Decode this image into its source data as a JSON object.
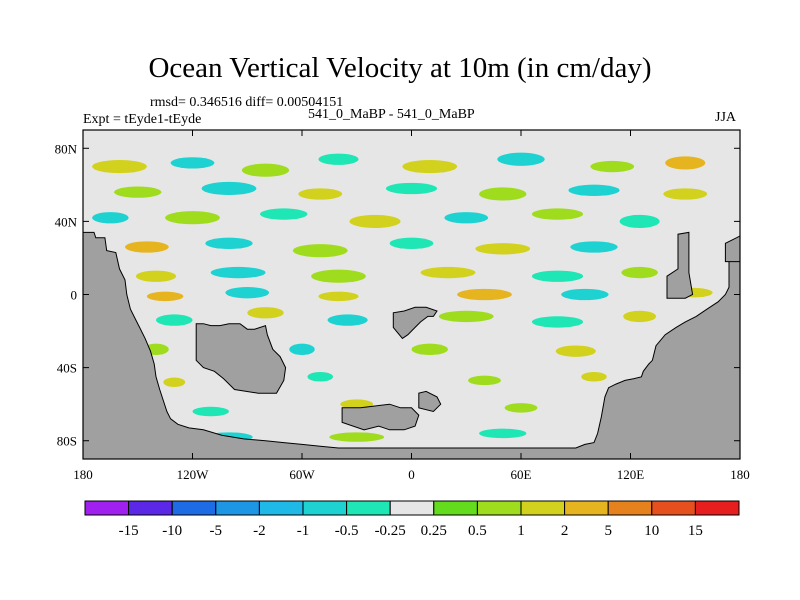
{
  "chart_data": {
    "type": "heatmap",
    "title": "Ocean Vertical Velocity at 10m (in cm/day)",
    "stats": "rmsd= 0.346516 diff= 0.00504151",
    "experiment": "Expt = tEyde1-tEyde",
    "comparison": "541_0_MaBP - 541_0_MaBP",
    "season": "JJA",
    "x_range": [
      -180,
      180
    ],
    "y_range": [
      -90,
      90
    ],
    "x_ticks": [
      {
        "value": -180,
        "label": "180"
      },
      {
        "value": -120,
        "label": "120W"
      },
      {
        "value": -60,
        "label": "60W"
      },
      {
        "value": 0,
        "label": "0"
      },
      {
        "value": 60,
        "label": "60E"
      },
      {
        "value": 120,
        "label": "120E"
      },
      {
        "value": 180,
        "label": "180"
      }
    ],
    "y_ticks": [
      {
        "value": 80,
        "label": "80N"
      },
      {
        "value": 40,
        "label": "40N"
      },
      {
        "value": 0,
        "label": "0"
      },
      {
        "value": -40,
        "label": "40S"
      },
      {
        "value": -80,
        "label": "80S"
      }
    ],
    "colorbar": {
      "labels": [
        "-15",
        "-10",
        "-5",
        "-2",
        "-1",
        "-0.5",
        "-0.25",
        "0.25",
        "0.5",
        "1",
        "2",
        "5",
        "10",
        "15"
      ],
      "colors": [
        "#a020f0",
        "#5a28e6",
        "#1e6be6",
        "#1e96e6",
        "#1eb9e6",
        "#1ed2d2",
        "#1ee6b4",
        "#e6e6e6",
        "#64dc1e",
        "#a0dc1e",
        "#d2d21e",
        "#e6b41e",
        "#e6821e",
        "#e6501e",
        "#e61e1e"
      ]
    },
    "land_color": "#a0a0a0",
    "near_zero_color": "#e6e6e6",
    "land_regions": [
      {
        "name": "americas-west",
        "lonlat": [
          [
            -180,
            -90
          ],
          [
            -180,
            34
          ],
          [
            -174,
            34
          ],
          [
            -173,
            31
          ],
          [
            -168,
            31
          ],
          [
            -167,
            24
          ],
          [
            -162,
            23
          ],
          [
            -160,
            14
          ],
          [
            -157,
            8
          ],
          [
            -156,
            0
          ],
          [
            -154,
            -8
          ],
          [
            -151,
            -14
          ],
          [
            -149,
            -18
          ],
          [
            -146,
            -24
          ],
          [
            -143,
            -31
          ],
          [
            -141,
            -38
          ],
          [
            -140,
            -45
          ],
          [
            -138,
            -52
          ],
          [
            -136,
            -58
          ],
          [
            -134,
            -64
          ],
          [
            -132,
            -68
          ],
          [
            -128,
            -71
          ],
          [
            -122,
            -73
          ],
          [
            -114,
            -74
          ],
          [
            -104,
            -77
          ],
          [
            -92,
            -79
          ],
          [
            -80,
            -80
          ],
          [
            -70,
            -81
          ],
          [
            -60,
            -82
          ],
          [
            -50,
            -83
          ],
          [
            -40,
            -84
          ],
          [
            -30,
            -84
          ],
          [
            -20,
            -84
          ],
          [
            -10,
            -84
          ],
          [
            0,
            -84
          ],
          [
            10,
            -84
          ],
          [
            20,
            -84
          ],
          [
            30,
            -84
          ],
          [
            40,
            -84
          ],
          [
            50,
            -84
          ],
          [
            60,
            -84
          ],
          [
            70,
            -84
          ],
          [
            80,
            -84
          ],
          [
            90,
            -84
          ],
          [
            95,
            -82
          ],
          [
            100,
            -81
          ],
          [
            102,
            -76
          ],
          [
            104,
            -67
          ],
          [
            106,
            -56
          ],
          [
            108,
            -51
          ],
          [
            112,
            -49
          ],
          [
            117,
            -47
          ],
          [
            122,
            -46
          ],
          [
            126,
            -45
          ],
          [
            127,
            -42
          ],
          [
            130,
            -38
          ],
          [
            132,
            -36
          ],
          [
            134,
            -28
          ],
          [
            139,
            -22
          ],
          [
            145,
            -18
          ],
          [
            150,
            -15
          ],
          [
            156,
            -12
          ],
          [
            162,
            -8
          ],
          [
            168,
            -4
          ],
          [
            172,
            0
          ],
          [
            174,
            4
          ],
          [
            174,
            20
          ],
          [
            176,
            28
          ],
          [
            180,
            32
          ],
          [
            180,
            -90
          ]
        ]
      },
      {
        "name": "south-america",
        "lonlat": [
          [
            -118,
            -16
          ],
          [
            -118,
            -36
          ],
          [
            -114,
            -40
          ],
          [
            -108,
            -42
          ],
          [
            -103,
            -46
          ],
          [
            -97,
            -52
          ],
          [
            -84,
            -54
          ],
          [
            -74,
            -54
          ],
          [
            -70,
            -47
          ],
          [
            -69,
            -40
          ],
          [
            -72,
            -34
          ],
          [
            -76,
            -30
          ],
          [
            -79,
            -22
          ],
          [
            -80,
            -17
          ],
          [
            -86,
            -19
          ],
          [
            -90,
            -19
          ],
          [
            -94,
            -16
          ],
          [
            -100,
            -16
          ],
          [
            -105,
            -17
          ],
          [
            -110,
            -17
          ],
          [
            -114,
            -16
          ]
        ]
      },
      {
        "name": "africa-tip",
        "lonlat": [
          [
            -10,
            -10
          ],
          [
            -10,
            -18
          ],
          [
            -5,
            -24
          ],
          [
            -2,
            -22
          ],
          [
            2,
            -18
          ],
          [
            5,
            -15
          ],
          [
            9,
            -12
          ],
          [
            12,
            -12
          ],
          [
            14,
            -9
          ],
          [
            8,
            -7
          ],
          [
            2,
            -7
          ],
          [
            -4,
            -9
          ]
        ]
      },
      {
        "name": "antarctic-peninsula",
        "lonlat": [
          [
            -38,
            -62
          ],
          [
            -38,
            -70
          ],
          [
            -26,
            -74
          ],
          [
            -18,
            -72
          ],
          [
            -12,
            -74
          ],
          [
            -4,
            -74
          ],
          [
            2,
            -72
          ],
          [
            4,
            -66
          ],
          [
            0,
            -62
          ],
          [
            -6,
            -62
          ],
          [
            -12,
            -60
          ],
          [
            -20,
            -61
          ],
          [
            -28,
            -62
          ]
        ]
      },
      {
        "name": "small-island",
        "lonlat": [
          [
            4,
            -54
          ],
          [
            4,
            -62
          ],
          [
            12,
            -64
          ],
          [
            16,
            -60
          ],
          [
            14,
            -56
          ],
          [
            8,
            -53
          ]
        ]
      },
      {
        "name": "east-ridge",
        "lonlat": [
          [
            140,
            -2
          ],
          [
            140,
            10
          ],
          [
            146,
            14
          ],
          [
            146,
            33
          ],
          [
            152,
            34
          ],
          [
            152,
            12
          ],
          [
            154,
            0
          ],
          [
            150,
            -2
          ]
        ]
      },
      {
        "name": "east-edge-block",
        "lonlat": [
          [
            172,
            18
          ],
          [
            172,
            28
          ],
          [
            176,
            30
          ],
          [
            180,
            32
          ],
          [
            180,
            18
          ]
        ]
      }
    ],
    "anomaly_patches": [
      {
        "lon": -160,
        "lat": 70,
        "w": 30,
        "h": 5,
        "value": 1
      },
      {
        "lon": -120,
        "lat": 72,
        "w": 24,
        "h": 4,
        "value": -1
      },
      {
        "lon": -80,
        "lat": 68,
        "w": 26,
        "h": 5,
        "value": 0.5
      },
      {
        "lon": -40,
        "lat": 74,
        "w": 22,
        "h": 4,
        "value": -0.5
      },
      {
        "lon": 10,
        "lat": 70,
        "w": 30,
        "h": 5,
        "value": 1
      },
      {
        "lon": 60,
        "lat": 74,
        "w": 26,
        "h": 5,
        "value": -1
      },
      {
        "lon": 110,
        "lat": 70,
        "w": 24,
        "h": 4,
        "value": 0.5
      },
      {
        "lon": 150,
        "lat": 72,
        "w": 22,
        "h": 5,
        "value": 2
      },
      {
        "lon": -150,
        "lat": 56,
        "w": 26,
        "h": 4,
        "value": 0.5
      },
      {
        "lon": -100,
        "lat": 58,
        "w": 30,
        "h": 5,
        "value": -1
      },
      {
        "lon": -50,
        "lat": 55,
        "w": 24,
        "h": 4,
        "value": 1
      },
      {
        "lon": 0,
        "lat": 58,
        "w": 28,
        "h": 4,
        "value": -0.5
      },
      {
        "lon": 50,
        "lat": 55,
        "w": 26,
        "h": 5,
        "value": 0.5
      },
      {
        "lon": 100,
        "lat": 57,
        "w": 28,
        "h": 4,
        "value": -1
      },
      {
        "lon": 150,
        "lat": 55,
        "w": 24,
        "h": 4,
        "value": 1
      },
      {
        "lon": -165,
        "lat": 42,
        "w": 20,
        "h": 4,
        "value": -1
      },
      {
        "lon": -120,
        "lat": 42,
        "w": 30,
        "h": 5,
        "value": 0.5
      },
      {
        "lon": -70,
        "lat": 44,
        "w": 26,
        "h": 4,
        "value": -0.5
      },
      {
        "lon": -20,
        "lat": 40,
        "w": 28,
        "h": 5,
        "value": 1
      },
      {
        "lon": 30,
        "lat": 42,
        "w": 24,
        "h": 4,
        "value": -1
      },
      {
        "lon": 80,
        "lat": 44,
        "w": 28,
        "h": 4,
        "value": 0.5
      },
      {
        "lon": 125,
        "lat": 40,
        "w": 22,
        "h": 5,
        "value": -0.5
      },
      {
        "lon": -145,
        "lat": 26,
        "w": 24,
        "h": 4,
        "value": 2
      },
      {
        "lon": -100,
        "lat": 28,
        "w": 26,
        "h": 4,
        "value": -1
      },
      {
        "lon": -50,
        "lat": 24,
        "w": 30,
        "h": 5,
        "value": 0.5
      },
      {
        "lon": 0,
        "lat": 28,
        "w": 24,
        "h": 4,
        "value": -0.5
      },
      {
        "lon": 50,
        "lat": 25,
        "w": 30,
        "h": 4,
        "value": 1
      },
      {
        "lon": 100,
        "lat": 26,
        "w": 26,
        "h": 4,
        "value": -1
      },
      {
        "lon": -140,
        "lat": 10,
        "w": 22,
        "h": 4,
        "value": 1
      },
      {
        "lon": -95,
        "lat": 12,
        "w": 30,
        "h": 4,
        "value": -1
      },
      {
        "lon": -40,
        "lat": 10,
        "w": 30,
        "h": 5,
        "value": 0.5
      },
      {
        "lon": 20,
        "lat": 12,
        "w": 30,
        "h": 4,
        "value": 1
      },
      {
        "lon": 80,
        "lat": 10,
        "w": 28,
        "h": 4,
        "value": -0.5
      },
      {
        "lon": 125,
        "lat": 12,
        "w": 20,
        "h": 4,
        "value": 0.5
      },
      {
        "lon": -135,
        "lat": -1,
        "w": 20,
        "h": 3,
        "value": 2
      },
      {
        "lon": -90,
        "lat": 1,
        "w": 24,
        "h": 4,
        "value": -1
      },
      {
        "lon": -40,
        "lat": -1,
        "w": 22,
        "h": 3,
        "value": 1
      },
      {
        "lon": 40,
        "lat": 0,
        "w": 30,
        "h": 4,
        "value": 2
      },
      {
        "lon": 95,
        "lat": 0,
        "w": 26,
        "h": 4,
        "value": -1
      },
      {
        "lon": 155,
        "lat": 1,
        "w": 20,
        "h": 3,
        "value": 1
      },
      {
        "lon": -130,
        "lat": -14,
        "w": 20,
        "h": 4,
        "value": -0.5
      },
      {
        "lon": -80,
        "lat": -10,
        "w": 20,
        "h": 4,
        "value": 1
      },
      {
        "lon": -35,
        "lat": -14,
        "w": 22,
        "h": 4,
        "value": -1
      },
      {
        "lon": 30,
        "lat": -12,
        "w": 30,
        "h": 4,
        "value": 0.5
      },
      {
        "lon": 80,
        "lat": -15,
        "w": 28,
        "h": 4,
        "value": -0.5
      },
      {
        "lon": 125,
        "lat": -12,
        "w": 18,
        "h": 4,
        "value": 1
      },
      {
        "lon": -140,
        "lat": -30,
        "w": 14,
        "h": 4,
        "value": 0.5
      },
      {
        "lon": -60,
        "lat": -30,
        "w": 14,
        "h": 4,
        "value": -1
      },
      {
        "lon": 10,
        "lat": -30,
        "w": 20,
        "h": 4,
        "value": 0.5
      },
      {
        "lon": 90,
        "lat": -31,
        "w": 22,
        "h": 4,
        "value": 1
      },
      {
        "lon": -130,
        "lat": -48,
        "w": 12,
        "h": 3,
        "value": 1
      },
      {
        "lon": -50,
        "lat": -45,
        "w": 14,
        "h": 3,
        "value": -0.5
      },
      {
        "lon": 40,
        "lat": -47,
        "w": 18,
        "h": 3,
        "value": 0.5
      },
      {
        "lon": 100,
        "lat": -45,
        "w": 14,
        "h": 3,
        "value": 1
      },
      {
        "lon": -110,
        "lat": -64,
        "w": 20,
        "h": 3,
        "value": -0.5
      },
      {
        "lon": -30,
        "lat": -60,
        "w": 18,
        "h": 3,
        "value": 1
      },
      {
        "lon": 60,
        "lat": -62,
        "w": 18,
        "h": 3,
        "value": 0.5
      },
      {
        "lon": -100,
        "lat": -78,
        "w": 26,
        "h": 3,
        "value": -1
      },
      {
        "lon": -30,
        "lat": -78,
        "w": 30,
        "h": 3,
        "value": 0.5
      },
      {
        "lon": 50,
        "lat": -76,
        "w": 26,
        "h": 3,
        "value": -0.5
      }
    ]
  }
}
